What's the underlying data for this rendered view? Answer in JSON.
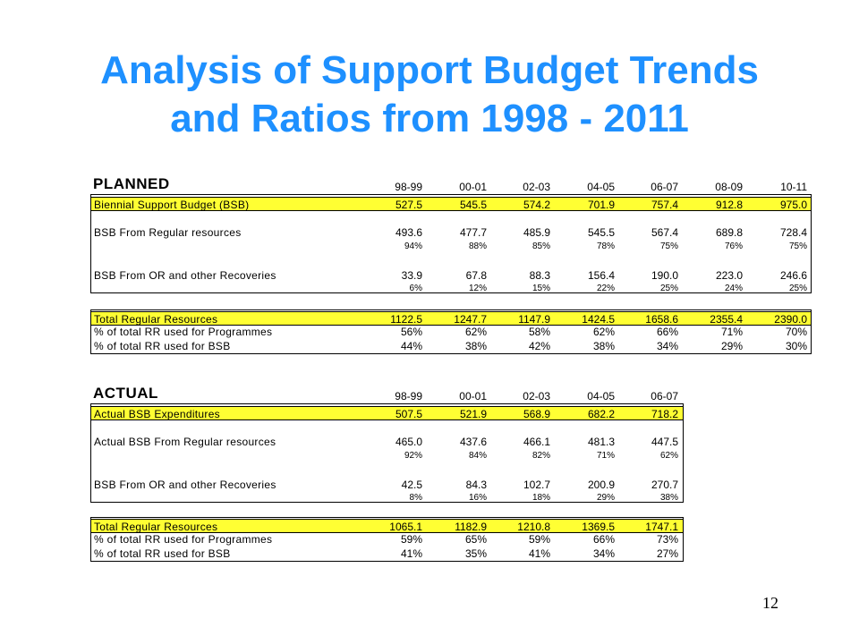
{
  "title_line1": "Analysis of Support Budget Trends",
  "title_line2": "and Ratios from 1998 - 2011",
  "planned": {
    "label": "PLANNED",
    "years": [
      "98-99",
      "00-01",
      "02-03",
      "04-05",
      "06-07",
      "08-09",
      "10-11"
    ],
    "rows": [
      {
        "label": "Biennial Support Budget (BSB)",
        "values": [
          "527.5",
          "545.5",
          "574.2",
          "701.9",
          "757.4",
          "912.8",
          "975.0"
        ],
        "style": "yellow"
      },
      {
        "label": "BSB From Regular resources",
        "values": [
          "493.6",
          "477.7",
          "485.9",
          "545.5",
          "567.4",
          "689.8",
          "728.4"
        ],
        "style": "normal"
      },
      {
        "label": "",
        "values": [
          "94%",
          "88%",
          "85%",
          "78%",
          "75%",
          "76%",
          "75%"
        ],
        "style": "pct"
      },
      {
        "label": "BSB From OR and other Recoveries",
        "values": [
          "33.9",
          "67.8",
          "88.3",
          "156.4",
          "190.0",
          "223.0",
          "246.6"
        ],
        "style": "normal"
      },
      {
        "label": "",
        "values": [
          "6%",
          "12%",
          "15%",
          "22%",
          "25%",
          "24%",
          "25%"
        ],
        "style": "pct"
      }
    ],
    "rows2": [
      {
        "label": "Total Regular Resources",
        "values": [
          "1122.5",
          "1247.7",
          "1147.9",
          "1424.5",
          "1658.6",
          "2355.4",
          "2390.0"
        ],
        "style": "yellow"
      },
      {
        "label": "% of total RR used for Programmes",
        "values": [
          "56%",
          "62%",
          "58%",
          "62%",
          "66%",
          "71%",
          "70%"
        ],
        "style": "normal"
      },
      {
        "label": "% of total RR used for BSB",
        "values": [
          "44%",
          "38%",
          "42%",
          "38%",
          "34%",
          "29%",
          "30%"
        ],
        "style": "normal"
      }
    ]
  },
  "actual": {
    "label": "ACTUAL",
    "years": [
      "98-99",
      "00-01",
      "02-03",
      "04-05",
      "06-07"
    ],
    "rows": [
      {
        "label": "Actual BSB Expenditures",
        "values": [
          "507.5",
          "521.9",
          "568.9",
          "682.2",
          "718.2"
        ],
        "style": "yellow"
      },
      {
        "label": "Actual BSB From Regular resources",
        "values": [
          "465.0",
          "437.6",
          "466.1",
          "481.3",
          "447.5"
        ],
        "style": "normal"
      },
      {
        "label": "",
        "values": [
          "92%",
          "84%",
          "82%",
          "71%",
          "62%"
        ],
        "style": "pct"
      },
      {
        "label": "BSB From OR and other Recoveries",
        "values": [
          "42.5",
          "84.3",
          "102.7",
          "200.9",
          "270.7"
        ],
        "style": "normal"
      },
      {
        "label": "",
        "values": [
          "8%",
          "16%",
          "18%",
          "29%",
          "38%"
        ],
        "style": "pct"
      }
    ],
    "rows2": [
      {
        "label": "Total Regular Resources",
        "values": [
          "1065.1",
          "1182.9",
          "1210.8",
          "1369.5",
          "1747.1"
        ],
        "style": "yellow"
      },
      {
        "label": "% of total RR used for Programmes",
        "values": [
          "59%",
          "65%",
          "59%",
          "66%",
          "73%"
        ],
        "style": "normal"
      },
      {
        "label": "% of total RR used for BSB",
        "values": [
          "41%",
          "35%",
          "41%",
          "34%",
          "27%"
        ],
        "style": "normal"
      }
    ]
  },
  "page_number": "12"
}
